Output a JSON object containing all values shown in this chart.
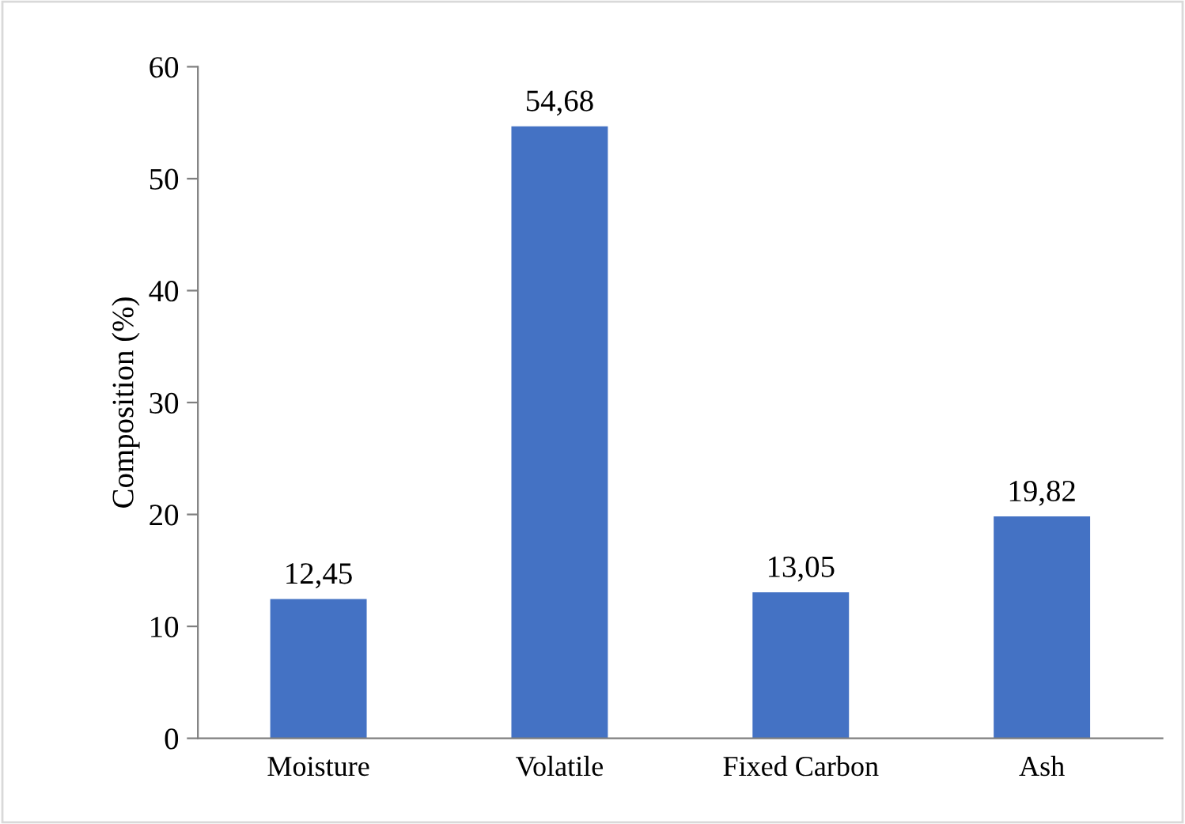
{
  "chart_data": {
    "type": "bar",
    "ylabel": "Composition (%)",
    "categories": [
      "Moisture",
      "Volatile",
      "Fixed Carbon",
      "Ash"
    ],
    "values": [
      12.45,
      54.68,
      13.05,
      19.82
    ],
    "color": "#4472c4",
    "value_labels": [
      "12,45",
      "54,68",
      "13,05",
      "19,82"
    ],
    "ylim": [
      0,
      60
    ],
    "yticks": [
      0,
      10,
      20,
      30,
      40,
      50,
      60
    ],
    "grid": false,
    "legend": false
  }
}
